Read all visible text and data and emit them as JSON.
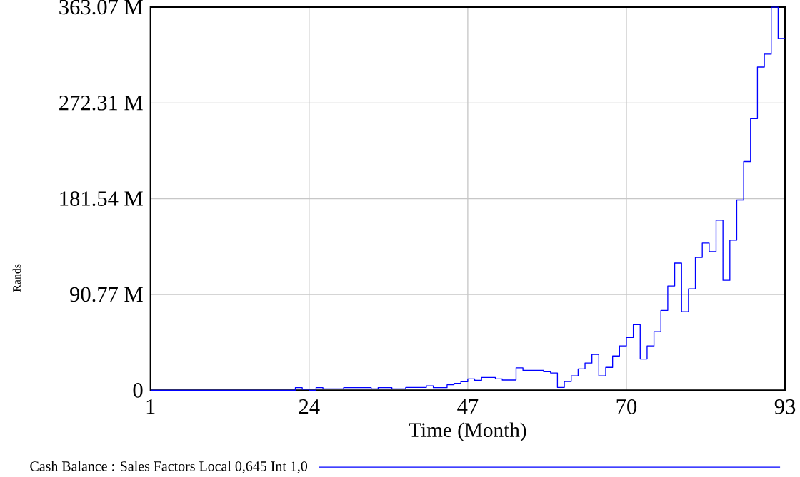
{
  "chart_data": {
    "type": "step",
    "xlabel": "Time (Month)",
    "ylabel": "Rands",
    "xlim": [
      1,
      93
    ],
    "ylim": [
      0,
      363.07
    ],
    "xticks": [
      1,
      24,
      47,
      70,
      93
    ],
    "yticks": [
      0,
      {
        "value": 90.77,
        "label": "90.77 M"
      },
      {
        "value": 181.54,
        "label": "181.54 M"
      },
      {
        "value": 272.31,
        "label": "272.31 M"
      },
      {
        "value": 363.07,
        "label": "363.07 M"
      }
    ],
    "grid": true,
    "legend": "bottom",
    "series": [
      {
        "name": "Cash Balance : Sales Factors Local 0,645 Int 1,0",
        "color": "#0000ff",
        "x": [
          1,
          22,
          23,
          24,
          25,
          26,
          29,
          33,
          34,
          36,
          38,
          41,
          42,
          44,
          45,
          46,
          47,
          48,
          49,
          51,
          52,
          54,
          55,
          58,
          59,
          60,
          61,
          62,
          63,
          64,
          65,
          66,
          67,
          68,
          69,
          70,
          71,
          72,
          73,
          74,
          75,
          76,
          77,
          78,
          79,
          80,
          81,
          82,
          83,
          84,
          85,
          86,
          87,
          88,
          89,
          90,
          91,
          92,
          93
        ],
        "values": [
          0,
          2.5,
          1.1,
          0,
          2.5,
          1.3,
          2.5,
          1.3,
          2.5,
          1.3,
          2.7,
          4.2,
          2.5,
          5.2,
          6.5,
          8.1,
          10.8,
          9.4,
          12.1,
          10.8,
          9.7,
          21.3,
          18.9,
          17.5,
          16.4,
          2.7,
          8.3,
          13.6,
          20.3,
          25.8,
          33.9,
          13.6,
          21.7,
          32.5,
          42,
          50,
          62.2,
          29.6,
          42,
          55.6,
          75.7,
          98.8,
          120.5,
          74.4,
          96.1,
          125.9,
          139.5,
          131.3,
          161.2,
          104.2,
          142.2,
          180.3,
          216.8,
          257.4,
          306.3,
          318.5,
          363,
          333.4,
          333.4
        ]
      }
    ]
  }
}
